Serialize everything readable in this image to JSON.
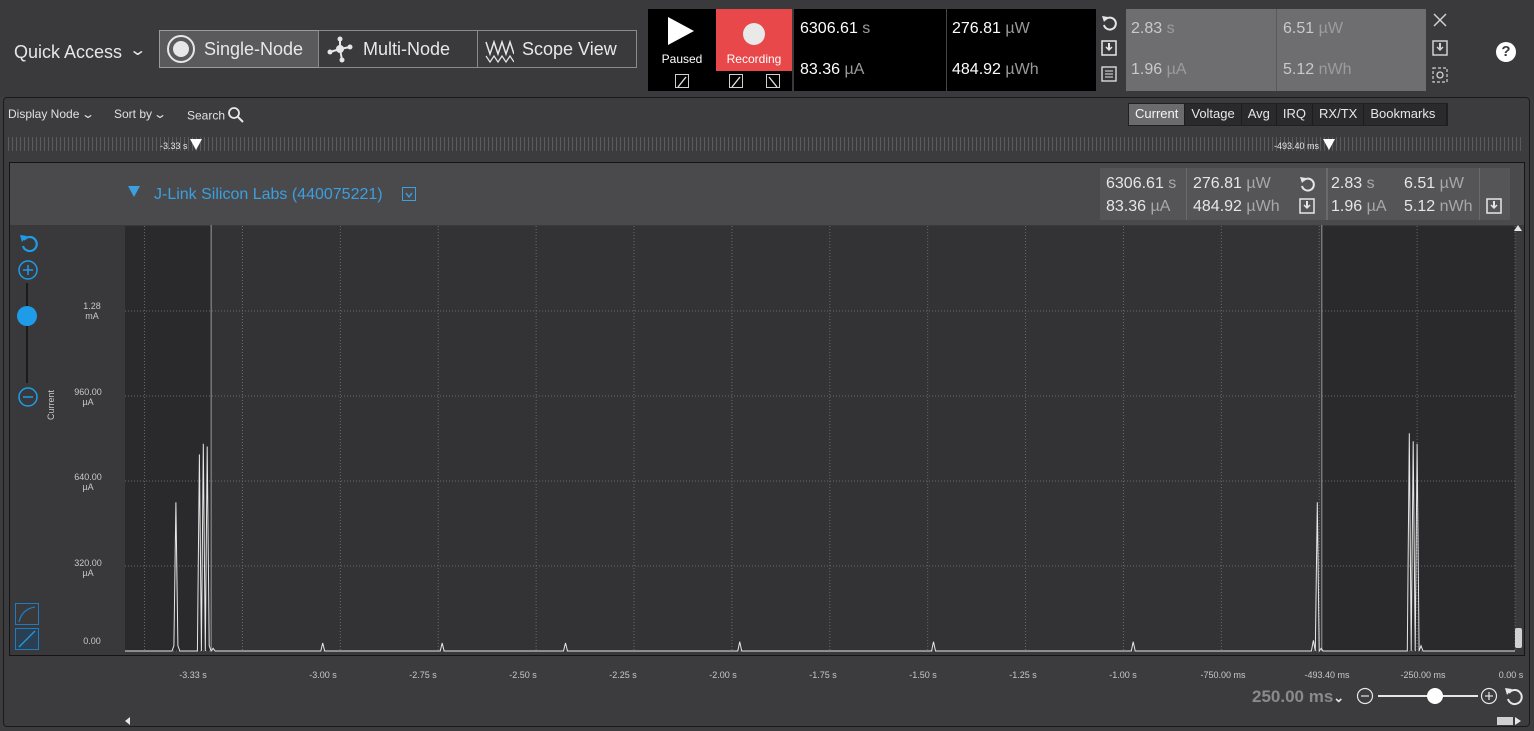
{
  "toolbar": {
    "quick_access": "Quick Access",
    "modes": [
      {
        "label": "Single-Node",
        "icon": "single-node-icon",
        "active": true
      },
      {
        "label": "Multi-Node",
        "icon": "multi-node-icon",
        "active": false
      },
      {
        "label": "Scope View",
        "icon": "scope-view-icon",
        "active": false
      }
    ],
    "paused_label": "Paused",
    "recording_label": "Recording",
    "readout": {
      "time_value": "6306.61",
      "time_unit": "s",
      "power_value": "276.81",
      "power_unit": "µW",
      "current_value": "83.36",
      "current_unit": "µA",
      "energy_value": "484.92",
      "energy_unit": "µWh"
    },
    "readout2": {
      "time_value": "2.83",
      "time_unit": "s",
      "power_value": "6.51",
      "power_unit": "µW",
      "current_value": "1.96",
      "current_unit": "µA",
      "energy_value": "5.12",
      "energy_unit": "nWh"
    },
    "help": "?"
  },
  "panel": {
    "display_node": "Display Node",
    "sort_by": "Sort by",
    "search": "Search",
    "tabs": [
      "Current",
      "Voltage",
      "Avg",
      "IRQ",
      "RX/TX",
      "Bookmarks"
    ],
    "active_tab": "Current",
    "marker_left": "-3.33 s",
    "marker_right": "-493.40 ms"
  },
  "node": {
    "name": "J-Link Silicon Labs (440075221)",
    "readout": {
      "time_value": "6306.61",
      "time_unit": "s",
      "power_value": "276.81",
      "power_unit": "µW",
      "current_value": "83.36",
      "current_unit": "µA",
      "energy_value": "484.92",
      "energy_unit": "µWh"
    },
    "readout2": {
      "time_value": "2.83",
      "time_unit": "s",
      "power_value": "6.51",
      "power_unit": "µW",
      "current_value": "1.96",
      "current_unit": "µA",
      "energy_value": "5.12",
      "energy_unit": "nWh"
    }
  },
  "chart_data": {
    "type": "line",
    "ylabel": "Current",
    "y_ticks": [
      {
        "value": "0.00",
        "unit": ""
      },
      {
        "value": "320.00",
        "unit": "µA"
      },
      {
        "value": "640.00",
        "unit": "µA"
      },
      {
        "value": "960.00",
        "unit": "µA"
      },
      {
        "value": "1.28",
        "unit": "mA"
      }
    ],
    "ylim_uA": [
      0,
      1600
    ],
    "x_ticks": [
      "-3.33 s",
      "-3.00 s",
      "-2.75 s",
      "-2.50 s",
      "-2.25 s",
      "-2.00 s",
      "-1.75 s",
      "-1.50 s",
      "-1.25 s",
      "-1.00 s",
      "-750.00 ms",
      "-493.40 ms",
      "-250.00 ms",
      "0.00 s"
    ],
    "xlim_s": [
      -3.55,
      0.0
    ],
    "grid": true,
    "series": [
      {
        "x": [
          -3.55,
          -3.43,
          -3.425,
          -3.42,
          -3.415,
          -3.41,
          -3.4,
          -3.365,
          -3.36,
          -3.355,
          -3.35,
          -3.345,
          -3.34,
          -3.335,
          -3.33,
          -3.325,
          -3.32,
          -3.05,
          -3.045,
          -3.04,
          -2.745,
          -2.74,
          -2.735,
          -2.43,
          -2.425,
          -2.42,
          -1.985,
          -1.98,
          -1.975,
          -1.49,
          -1.485,
          -1.48,
          -0.98,
          -0.975,
          -0.97,
          -0.52,
          -0.515,
          -0.51,
          -0.505,
          -0.5,
          -0.495,
          -0.49,
          -0.485,
          -0.48,
          -0.275,
          -0.27,
          -0.265,
          -0.26,
          -0.255,
          -0.25,
          -0.245,
          -0.24,
          -0.235,
          -0.23,
          0.0
        ],
        "y": [
          0,
          0,
          20,
          560,
          20,
          0,
          0,
          0,
          740,
          0,
          780,
          0,
          770,
          20,
          0,
          10,
          0,
          0,
          30,
          0,
          0,
          30,
          0,
          0,
          30,
          0,
          0,
          35,
          0,
          0,
          35,
          0,
          0,
          35,
          0,
          0,
          40,
          0,
          560,
          0,
          10,
          0,
          0,
          0,
          0,
          820,
          0,
          790,
          0,
          780,
          0,
          20,
          0,
          0,
          0
        ]
      }
    ]
  },
  "zoom": {
    "value": "250.00 ms"
  }
}
